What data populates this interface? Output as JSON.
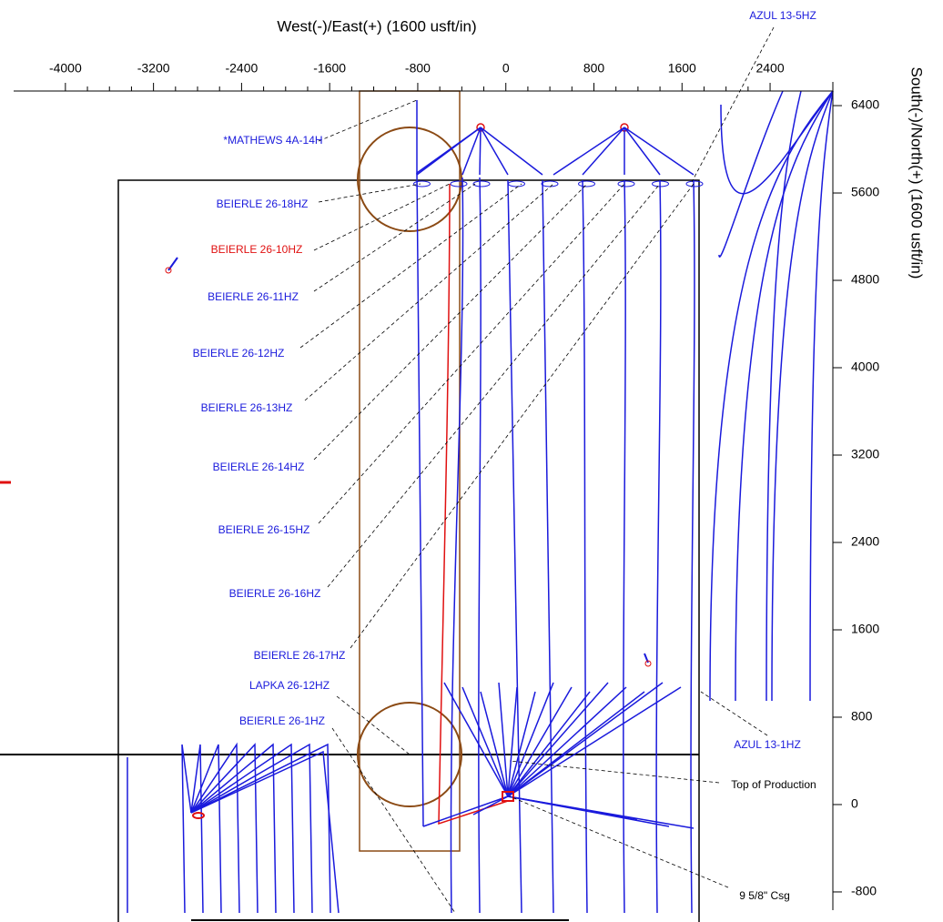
{
  "chart_data": {
    "type": "plan",
    "x_label": "West(-)/East(+) (1600 usft/in)",
    "y_label": "South(-)/North(+) (1600 usft/in)",
    "xlim": [
      -4470,
      2970
    ],
    "xticks": [
      -4000,
      -3200,
      -2400,
      -1600,
      -800,
      0,
      800,
      1600,
      2400
    ],
    "ylim": [
      -967,
      6617
    ],
    "yticks": [
      6400,
      5600,
      4800,
      4000,
      3200,
      2400,
      1600,
      800,
      0,
      -800
    ],
    "annotations": [
      {
        "text": "AZUL 13-5HZ",
        "color": "#1a1adc"
      },
      {
        "text": "*MATHEWS 4A-14H",
        "color": "#1a1adc"
      },
      {
        "text": "BEIERLE 26-18HZ",
        "color": "#1a1adc"
      },
      {
        "text": "BEIERLE 26-10HZ",
        "color": "#e01010"
      },
      {
        "text": "BEIERLE 26-11HZ",
        "color": "#1a1adc"
      },
      {
        "text": "BEIERLE 26-12HZ",
        "color": "#1a1adc"
      },
      {
        "text": "BEIERLE 26-13HZ",
        "color": "#1a1adc"
      },
      {
        "text": "BEIERLE 26-14HZ",
        "color": "#1a1adc"
      },
      {
        "text": "BEIERLE 26-15HZ",
        "color": "#1a1adc"
      },
      {
        "text": "BEIERLE 26-16HZ",
        "color": "#1a1adc"
      },
      {
        "text": "BEIERLE 26-17HZ",
        "color": "#1a1adc"
      },
      {
        "text": "LAPKA 26-12HZ",
        "color": "#1a1adc"
      },
      {
        "text": "BEIERLE 26-1HZ",
        "color": "#1a1adc"
      },
      {
        "text": "AZUL 13-1HZ",
        "color": "#1a1adc"
      },
      {
        "text": "Top of Production",
        "color": "#000000"
      },
      {
        "text": "9 5/8\" Csg",
        "color": "#000000"
      }
    ]
  }
}
